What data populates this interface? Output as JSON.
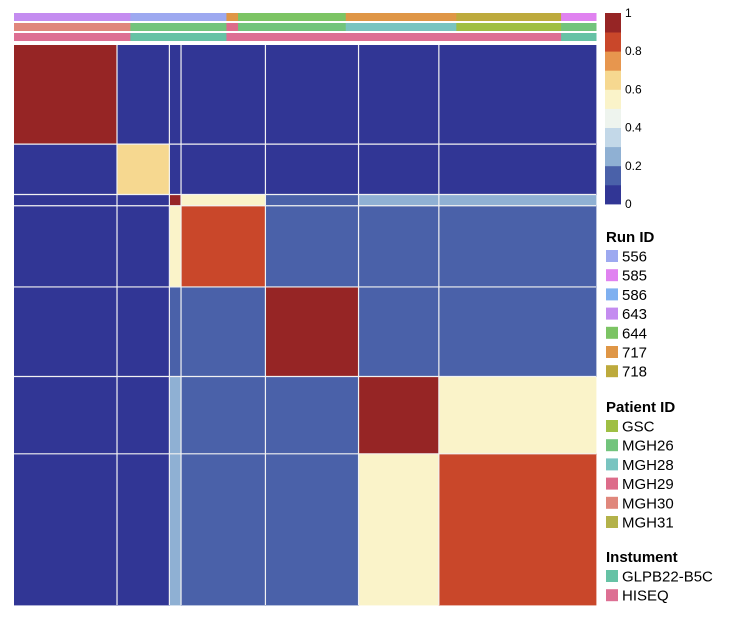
{
  "chart_data": {
    "type": "heatmap",
    "title": "",
    "description_scale": "correlation",
    "color_scale": {
      "range": [
        0,
        1
      ],
      "ticks": [
        "0",
        "0.2",
        "0.4",
        "0.6",
        "0.8",
        "1"
      ],
      "tick_values": [
        0,
        0.2,
        0.4,
        0.6,
        0.8,
        1
      ],
      "steps": [
        {
          "value": 0.05,
          "color": "#313695"
        },
        {
          "value": 0.15,
          "color": "#4a61a9"
        },
        {
          "value": 0.25,
          "color": "#8fb0d3"
        },
        {
          "value": 0.35,
          "color": "#c3d8e8"
        },
        {
          "value": 0.45,
          "color": "#eef4ee"
        },
        {
          "value": 0.55,
          "color": "#faf3c9"
        },
        {
          "value": 0.65,
          "color": "#f6d890"
        },
        {
          "value": 0.75,
          "color": "#e7964e"
        },
        {
          "value": 0.85,
          "color": "#c9472a"
        },
        {
          "value": 0.95,
          "color": "#962525"
        }
      ]
    },
    "clusters": [
      {
        "size": 0.177,
        "within": 0.97
      },
      {
        "size": 0.09,
        "within": 0.62
      },
      {
        "size": 0.02,
        "within": 0.92
      },
      {
        "size": 0.145,
        "within": 0.85
      },
      {
        "size": 0.16,
        "within": 0.9
      },
      {
        "size": 0.138,
        "within": 0.92
      },
      {
        "size": 0.27,
        "within": 0.88
      }
    ],
    "between_cluster": [
      [
        null,
        0.05,
        0.05,
        0.05,
        0.05,
        0.05,
        0.05
      ],
      [
        0.05,
        null,
        0.08,
        0.05,
        0.05,
        0.05,
        0.05
      ],
      [
        0.05,
        0.08,
        null,
        0.55,
        0.1,
        0.2,
        0.2
      ],
      [
        0.05,
        0.05,
        0.55,
        null,
        0.15,
        0.15,
        0.15
      ],
      [
        0.05,
        0.05,
        0.1,
        0.15,
        null,
        0.1,
        0.1
      ],
      [
        0.05,
        0.05,
        0.2,
        0.15,
        0.1,
        null,
        0.55
      ],
      [
        0.05,
        0.05,
        0.2,
        0.15,
        0.1,
        0.55,
        null
      ]
    ],
    "annotation_rows": [
      {
        "name": "Run ID",
        "segments": [
          {
            "label": "643",
            "fraction": 0.2
          },
          {
            "label": "556",
            "fraction": 0.165
          },
          {
            "label": "717",
            "fraction": 0.02
          },
          {
            "label": "644",
            "fraction": 0.185
          },
          {
            "label": "717",
            "fraction": 0.19
          },
          {
            "label": "718",
            "fraction": 0.18
          },
          {
            "label": "585",
            "fraction": 0.06
          }
        ]
      },
      {
        "name": "Patient ID",
        "segments": [
          {
            "label": "MGH30",
            "fraction": 0.2
          },
          {
            "label": "MGH26",
            "fraction": 0.165
          },
          {
            "label": "MGH29",
            "fraction": 0.02
          },
          {
            "label": "MGH26",
            "fraction": 0.185
          },
          {
            "label": "MGH28",
            "fraction": 0.19
          },
          {
            "label": "GSC",
            "fraction": 0.18
          },
          {
            "label": "MGH26",
            "fraction": 0.06
          }
        ]
      },
      {
        "name": "Instument",
        "segments": [
          {
            "label": "HISEQ",
            "fraction": 0.2
          },
          {
            "label": "GLPB22-B5C",
            "fraction": 0.165
          },
          {
            "label": "HISEQ",
            "fraction": 0.205
          },
          {
            "label": "HISEQ",
            "fraction": 0.19
          },
          {
            "label": "HISEQ",
            "fraction": 0.18
          },
          {
            "label": "GLPB22-B5C",
            "fraction": 0.06
          }
        ]
      }
    ],
    "legends": [
      {
        "title": "Run ID",
        "items": [
          {
            "label": "556",
            "color": "#9da9f0"
          },
          {
            "label": "585",
            "color": "#e082f0"
          },
          {
            "label": "586",
            "color": "#7fb0f0"
          },
          {
            "label": "643",
            "color": "#c48cf0"
          },
          {
            "label": "644",
            "color": "#7cc464"
          },
          {
            "label": "717",
            "color": "#df9646"
          },
          {
            "label": "718",
            "color": "#bdaa3c"
          }
        ]
      },
      {
        "title": "Patient ID",
        "items": [
          {
            "label": "GSC",
            "color": "#9fbf44"
          },
          {
            "label": "MGH26",
            "color": "#72c47c"
          },
          {
            "label": "MGH28",
            "color": "#79c4c0"
          },
          {
            "label": "MGH29",
            "color": "#dd6c8a"
          },
          {
            "label": "MGH30",
            "color": "#e0877c"
          },
          {
            "label": "MGH31",
            "color": "#b3b24a"
          }
        ]
      },
      {
        "title": "Instument",
        "items": [
          {
            "label": "GLPB22-B5C",
            "color": "#66c2a5"
          },
          {
            "label": "HISEQ",
            "color": "#dd6f93"
          }
        ]
      }
    ]
  }
}
